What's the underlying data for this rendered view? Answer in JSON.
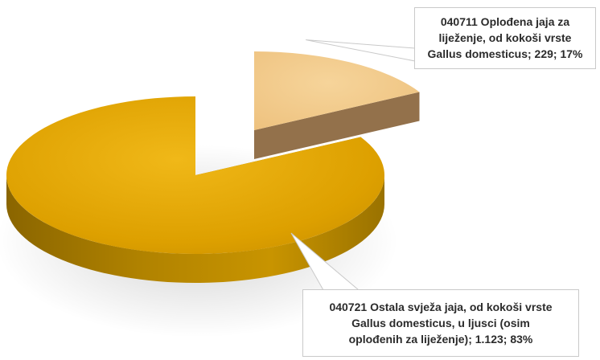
{
  "chart_data": {
    "type": "pie",
    "title": "",
    "style": "3d-exploded",
    "series": [
      {
        "values": [
          229,
          1123
        ],
        "categories": [
          "040711 Oplođena jaja za liježenje, od kokoši vrste Gallus domesticus",
          "040721 Ostala svježa jaja, od kokoši vrste Gallus domesticus, u ljusci (osim oplođenih za liježenje)"
        ],
        "percents": [
          17,
          83
        ],
        "colors": [
          "#F2C98A",
          "#E0A400"
        ]
      }
    ],
    "data_labels": [
      "040711 Oplođena jaja za\nliježenje, od kokoši vrste\nGallus domesticus; 229; 17%",
      "040721 Ostala svježa jaja, od kokoši vrste\nGallus domesticus, u ljusci (osim\noplođenih za liježenje); 1.123; 83%"
    ]
  }
}
